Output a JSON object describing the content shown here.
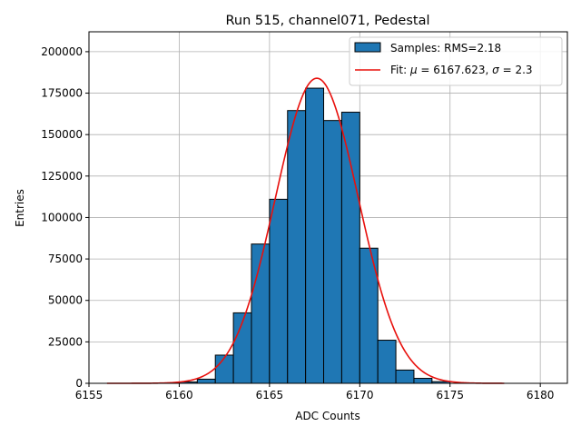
{
  "chart_data": {
    "type": "bar",
    "title": "Run 515, channel071, Pedestal",
    "xlabel": "ADC Counts",
    "ylabel": "Entries",
    "xlim": [
      6155,
      6181.5
    ],
    "ylim": [
      0,
      212000
    ],
    "xticks": [
      6155,
      6160,
      6165,
      6170,
      6175,
      6180
    ],
    "yticks": [
      0,
      25000,
      50000,
      75000,
      100000,
      125000,
      150000,
      175000,
      200000
    ],
    "grid": true,
    "legend_position": "top-right",
    "histogram": {
      "name": "Samples: RMS=2.18",
      "color": "#1f77b4",
      "edgecolor": "#000000",
      "bins": [
        {
          "x0": 6160,
          "x1": 6161,
          "y": 800
        },
        {
          "x0": 6161,
          "x1": 6162,
          "y": 2500
        },
        {
          "x0": 6162,
          "x1": 6163,
          "y": 17000
        },
        {
          "x0": 6163,
          "x1": 6164,
          "y": 42500
        },
        {
          "x0": 6164,
          "x1": 6165,
          "y": 84000
        },
        {
          "x0": 6165,
          "x1": 6166,
          "y": 111000
        },
        {
          "x0": 6166,
          "x1": 6167,
          "y": 164500
        },
        {
          "x0": 6167,
          "x1": 6168,
          "y": 178000
        },
        {
          "x0": 6168,
          "x1": 6169,
          "y": 158500
        },
        {
          "x0": 6169,
          "x1": 6170,
          "y": 163500
        },
        {
          "x0": 6170,
          "x1": 6171,
          "y": 81500
        },
        {
          "x0": 6171,
          "x1": 6172,
          "y": 26000
        },
        {
          "x0": 6172,
          "x1": 6173,
          "y": 8000
        },
        {
          "x0": 6173,
          "x1": 6174,
          "y": 3000
        },
        {
          "x0": 6174,
          "x1": 6175,
          "y": 1000
        }
      ]
    },
    "fit": {
      "label_prefix": "Fit: ",
      "mu_symbol": "μ",
      "mu_value": "6167.623",
      "sigma_symbol": "σ",
      "sigma_value": "2.3",
      "color": "#e8100c",
      "amplitude": 184000,
      "mu": 6167.623,
      "sigma": 2.3,
      "x_range": [
        6156,
        6178
      ]
    }
  }
}
